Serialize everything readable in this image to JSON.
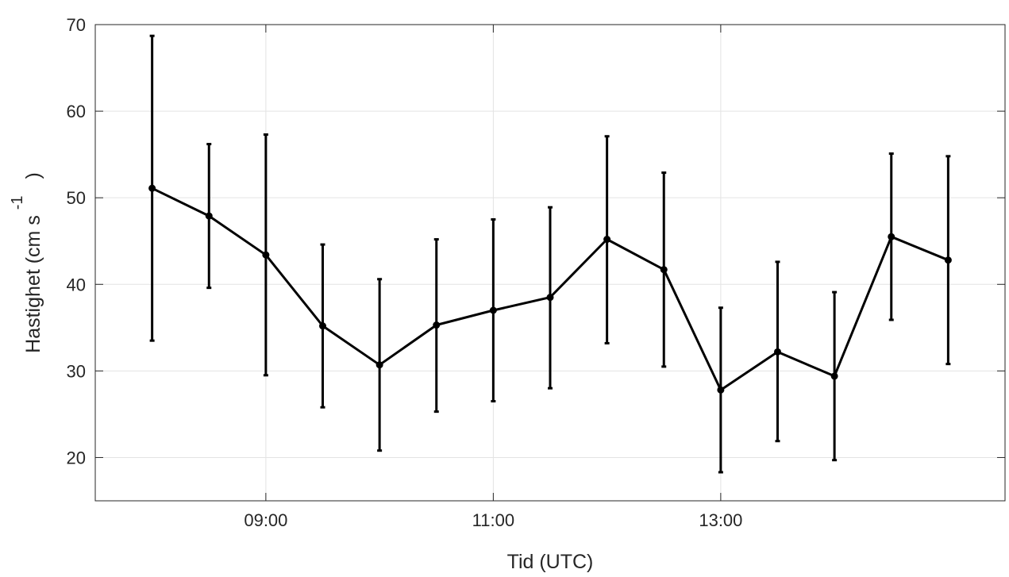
{
  "chart_data": {
    "type": "line",
    "title": "",
    "xlabel": "Tid (UTC)",
    "ylabel_main": "Hastighet (cm s",
    "ylabel_sup": "-1",
    "ylabel_close": ")",
    "xlim": [
      "07:30",
      "15:30"
    ],
    "ylim": [
      15,
      70
    ],
    "x_ticks": [
      "09:00",
      "11:00",
      "13:00"
    ],
    "y_ticks": [
      20,
      30,
      40,
      50,
      60,
      70
    ],
    "grid": true,
    "color": "#000000",
    "series": [
      {
        "x": [
          "08:00",
          "08:30",
          "09:00",
          "09:30",
          "10:00",
          "10:30",
          "11:00",
          "11:30",
          "12:00",
          "12:30",
          "13:00",
          "13:30",
          "14:00",
          "14:30",
          "15:00"
        ],
        "values": [
          51.1,
          47.9,
          43.4,
          35.2,
          30.7,
          35.3,
          37.0,
          38.5,
          45.2,
          41.7,
          27.8,
          32.2,
          29.4,
          45.5,
          42.8
        ],
        "upper": [
          68.7,
          56.2,
          57.3,
          44.6,
          40.6,
          45.2,
          47.5,
          48.9,
          57.1,
          52.9,
          37.3,
          42.6,
          39.1,
          55.1,
          54.8
        ],
        "lower": [
          33.5,
          39.6,
          29.5,
          25.8,
          20.8,
          25.3,
          26.5,
          28.0,
          33.2,
          30.5,
          18.3,
          21.9,
          19.7,
          35.9,
          30.8
        ]
      }
    ]
  }
}
